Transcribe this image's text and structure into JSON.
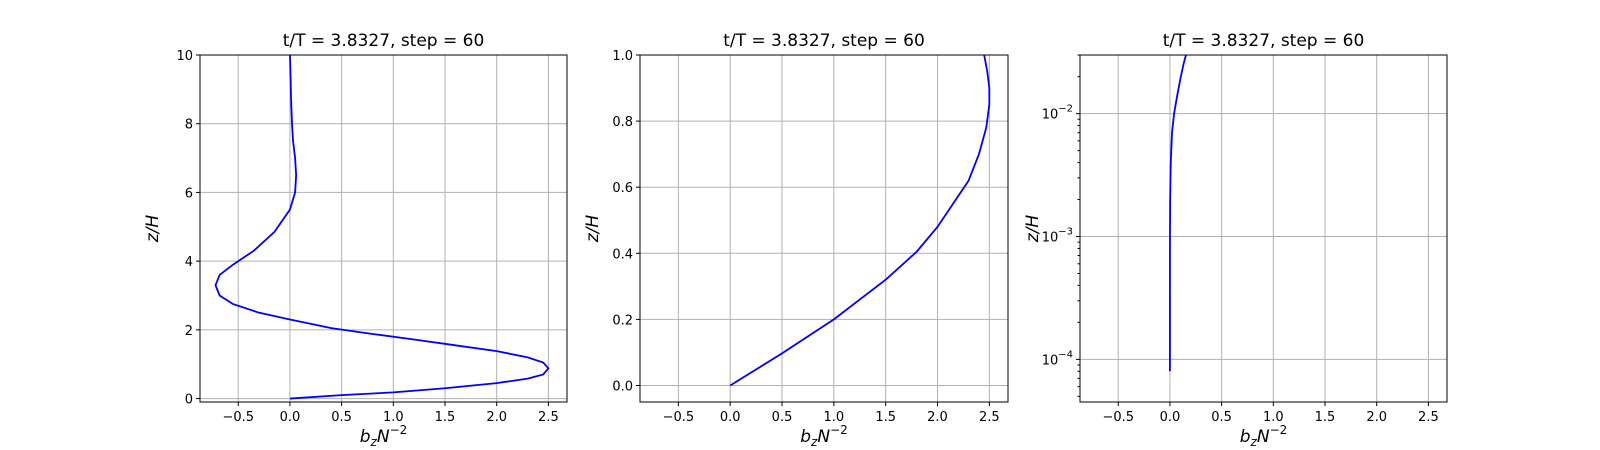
{
  "chart_data": [
    {
      "type": "line",
      "title": "t/T = 3.8327, step = 60",
      "xlabel": "b_zN^{-2}",
      "ylabel": "z/H",
      "xlim": [
        -0.87,
        2.68
      ],
      "ylim": [
        -0.1,
        10.0
      ],
      "yscale": "linear",
      "grid": true,
      "xticks": [
        -0.5,
        0.0,
        0.5,
        1.0,
        1.5,
        2.0,
        2.5
      ],
      "xtick_labels": [
        "−0.5",
        "0.0",
        "0.5",
        "1.0",
        "1.5",
        "2.0",
        "2.5"
      ],
      "yticks": [
        0,
        2,
        4,
        6,
        8,
        10
      ],
      "ytick_labels": [
        "0",
        "2",
        "4",
        "6",
        "8",
        "10"
      ],
      "series": [
        {
          "color": "#0000ff",
          "x": [
            0.0,
            0.5,
            1.0,
            1.5,
            2.0,
            2.3,
            2.45,
            2.5,
            2.45,
            2.3,
            2.0,
            1.6,
            1.2,
            0.8,
            0.4,
            0.0,
            -0.3,
            -0.55,
            -0.68,
            -0.72,
            -0.68,
            -0.55,
            -0.35,
            -0.15,
            0.0,
            0.05,
            0.06,
            0.05,
            0.03,
            0.02,
            0.01,
            0.005,
            0.0
          ],
          "y": [
            0.0,
            0.1,
            0.18,
            0.3,
            0.45,
            0.58,
            0.7,
            0.88,
            1.05,
            1.2,
            1.38,
            1.55,
            1.72,
            1.88,
            2.05,
            2.3,
            2.5,
            2.75,
            3.0,
            3.3,
            3.6,
            3.9,
            4.3,
            4.85,
            5.5,
            6.0,
            6.5,
            7.0,
            7.5,
            8.0,
            8.8,
            9.5,
            10.0
          ]
        }
      ]
    },
    {
      "type": "line",
      "title": "t/T = 3.8327, step = 60",
      "xlabel": "b_zN^{-2}",
      "ylabel": "z/H",
      "xlim": [
        -0.87,
        2.68
      ],
      "ylim": [
        -0.05,
        1.0
      ],
      "yscale": "linear",
      "grid": true,
      "xticks": [
        -0.5,
        0.0,
        0.5,
        1.0,
        1.5,
        2.0,
        2.5
      ],
      "xtick_labels": [
        "−0.5",
        "0.0",
        "0.5",
        "1.0",
        "1.5",
        "2.0",
        "2.5"
      ],
      "yticks": [
        0.0,
        0.2,
        0.4,
        0.6,
        0.8,
        1.0
      ],
      "ytick_labels": [
        "0.0",
        "0.2",
        "0.4",
        "0.6",
        "0.8",
        "1.0"
      ],
      "series": [
        {
          "color": "#0000ff",
          "x": [
            0.0,
            0.5,
            1.0,
            1.5,
            1.8,
            2.0,
            2.15,
            2.3,
            2.4,
            2.47,
            2.5,
            2.5,
            2.48,
            2.45
          ],
          "y": [
            0.0,
            0.097,
            0.2,
            0.32,
            0.405,
            0.48,
            0.55,
            0.62,
            0.7,
            0.78,
            0.85,
            0.9,
            0.95,
            1.0
          ]
        }
      ]
    },
    {
      "type": "line",
      "title": "t/T = 3.8327, step = 60",
      "xlabel": "b_zN^{-2}",
      "ylabel": "z/H",
      "xlim": [
        -0.87,
        2.68
      ],
      "ylim": [
        4.5e-05,
        0.03
      ],
      "yscale": "log",
      "grid": true,
      "xticks": [
        -0.5,
        0.0,
        0.5,
        1.0,
        1.5,
        2.0,
        2.5
      ],
      "xtick_labels": [
        "−0.5",
        "0.0",
        "0.5",
        "1.0",
        "1.5",
        "2.0",
        "2.5"
      ],
      "yticks": [
        0.0001,
        0.001,
        0.01
      ],
      "ytick_labels": [
        [
          "10",
          "−4"
        ],
        [
          "10",
          "−3"
        ],
        [
          "10",
          "−2"
        ]
      ],
      "series": [
        {
          "color": "#0000ff",
          "x": [
            0.0,
            0.0,
            0.0005,
            0.002,
            0.008,
            0.02,
            0.04,
            0.07,
            0.1,
            0.13,
            0.155
          ],
          "y": [
            8e-05,
            0.0003,
            0.001,
            0.002,
            0.004,
            0.007,
            0.01,
            0.014,
            0.019,
            0.025,
            0.03
          ]
        }
      ]
    }
  ]
}
